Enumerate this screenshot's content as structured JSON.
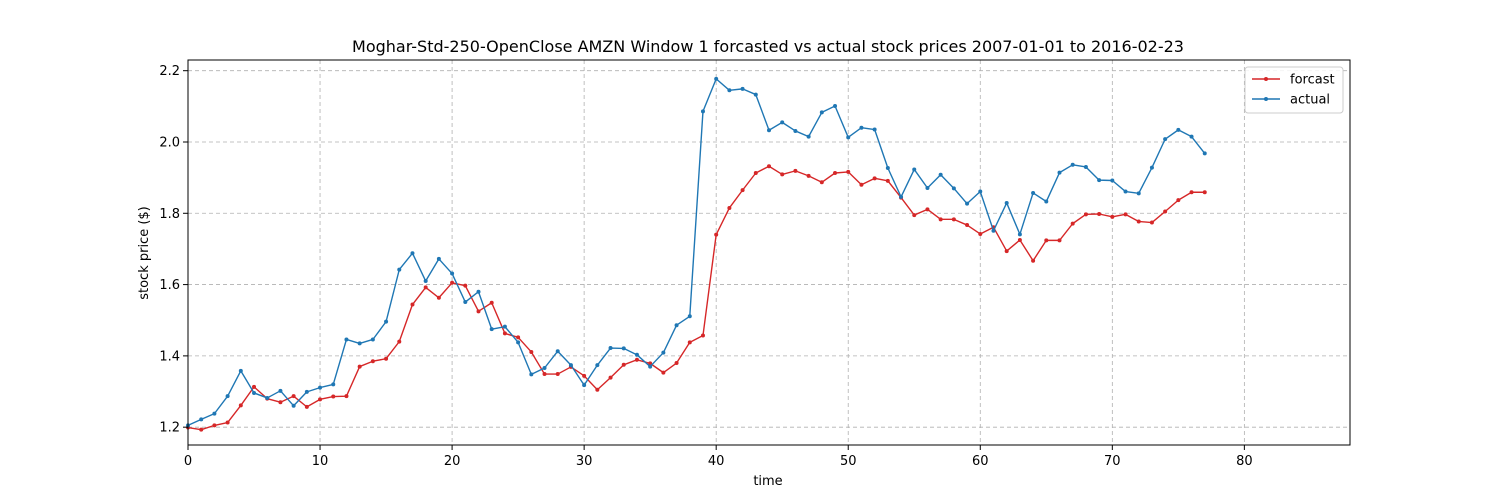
{
  "chart_data": {
    "type": "line",
    "title": "Moghar-Std-250-OpenClose AMZN Window 1 forcasted vs actual stock prices 2007-01-01 to 2016-02-23",
    "xlabel": "time",
    "ylabel": "stock price ($)",
    "xlim": [
      0,
      88
    ],
    "ylim": [
      1.15,
      2.23
    ],
    "xticks": [
      0,
      10,
      20,
      30,
      40,
      50,
      60,
      70,
      80
    ],
    "yticks": [
      1.2,
      1.4,
      1.6,
      1.8,
      2.0,
      2.2
    ],
    "ytick_labels": [
      "1.2",
      "1.4",
      "1.6",
      "1.8",
      "2.0",
      "2.2"
    ],
    "grid": true,
    "legend_position": "top-right",
    "x": [
      0,
      1,
      2,
      3,
      4,
      5,
      6,
      7,
      8,
      9,
      10,
      11,
      12,
      13,
      14,
      15,
      16,
      17,
      18,
      19,
      20,
      21,
      22,
      23,
      24,
      25,
      26,
      27,
      28,
      29,
      30,
      31,
      32,
      33,
      34,
      35,
      36,
      37,
      38,
      39,
      40,
      41,
      42,
      43,
      44,
      45,
      46,
      47,
      48,
      49,
      50,
      51,
      52,
      53,
      54,
      55,
      56,
      57,
      58,
      59,
      60,
      61,
      62,
      63,
      64,
      65,
      66,
      67,
      68,
      69,
      70,
      71,
      72,
      73,
      74,
      75,
      76,
      77
    ],
    "series": [
      {
        "name": "forcast",
        "color": "#d62728",
        "values": [
          1.199,
          1.193,
          1.205,
          1.213,
          1.261,
          1.313,
          1.28,
          1.27,
          1.287,
          1.257,
          1.278,
          1.286,
          1.287,
          1.37,
          1.385,
          1.392,
          1.44,
          1.544,
          1.592,
          1.563,
          1.605,
          1.597,
          1.525,
          1.549,
          1.463,
          1.452,
          1.411,
          1.349,
          1.349,
          1.369,
          1.344,
          1.305,
          1.339,
          1.375,
          1.389,
          1.379,
          1.353,
          1.38,
          1.438,
          1.457,
          1.74,
          1.815,
          1.865,
          1.913,
          1.932,
          1.909,
          1.919,
          1.905,
          1.887,
          1.913,
          1.916,
          1.88,
          1.898,
          1.891,
          1.844,
          1.795,
          1.811,
          1.783,
          1.783,
          1.767,
          1.742,
          1.761,
          1.694,
          1.725,
          1.667,
          1.724,
          1.724,
          1.771,
          1.797,
          1.798,
          1.79,
          1.797,
          1.777,
          1.774,
          1.805,
          1.837,
          1.859,
          1.859
        ]
      },
      {
        "name": "actual",
        "color": "#1f77b4",
        "values": [
          1.205,
          1.222,
          1.238,
          1.287,
          1.358,
          1.296,
          1.282,
          1.302,
          1.26,
          1.299,
          1.311,
          1.32,
          1.446,
          1.435,
          1.446,
          1.496,
          1.642,
          1.688,
          1.61,
          1.672,
          1.631,
          1.551,
          1.58,
          1.475,
          1.482,
          1.438,
          1.348,
          1.366,
          1.413,
          1.374,
          1.318,
          1.374,
          1.422,
          1.421,
          1.403,
          1.37,
          1.409,
          1.486,
          1.511,
          2.086,
          2.177,
          2.145,
          2.149,
          2.133,
          2.033,
          2.055,
          2.031,
          2.015,
          2.083,
          2.101,
          2.013,
          2.04,
          2.035,
          1.927,
          1.846,
          1.923,
          1.871,
          1.908,
          1.87,
          1.827,
          1.861,
          1.751,
          1.829,
          1.741,
          1.857,
          1.833,
          1.914,
          1.936,
          1.93,
          1.893,
          1.892,
          1.861,
          1.856,
          1.928,
          2.008,
          2.034,
          2.015,
          1.968
        ]
      }
    ]
  }
}
